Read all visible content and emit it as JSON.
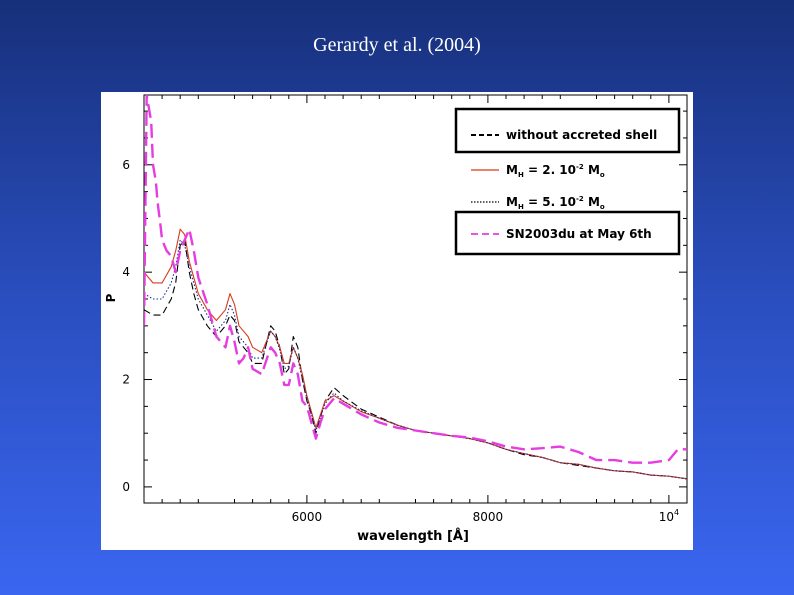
{
  "slide": {
    "title": "Gerardy et al. (2004)"
  },
  "chart_data": {
    "type": "line",
    "xlabel": "wavelength [Å]",
    "ylabel": "P",
    "xlim": [
      4200,
      10200
    ],
    "ylim": [
      -0.3,
      7.3
    ],
    "x_ticks": [
      {
        "value": 6000,
        "label": "6000"
      },
      {
        "value": 8000,
        "label": "8000"
      },
      {
        "value": 10000,
        "label": "10",
        "sup": "4"
      }
    ],
    "y_ticks": [
      {
        "value": 0,
        "label": "0"
      },
      {
        "value": 2,
        "label": "2"
      },
      {
        "value": 4,
        "label": "4"
      },
      {
        "value": 6,
        "label": "6"
      }
    ],
    "legend_position": "top-right",
    "series": [
      {
        "name": "without accreted shell",
        "legend_text": "without  accreted  shell",
        "color": "#000000",
        "dash": "7,4",
        "width": 1.1,
        "x": [
          4200,
          4300,
          4400,
          4500,
          4550,
          4600,
          4650,
          4700,
          4750,
          4800,
          4900,
          5000,
          5100,
          5150,
          5200,
          5250,
          5300,
          5350,
          5400,
          5500,
          5600,
          5650,
          5700,
          5750,
          5800,
          5850,
          5900,
          5950,
          6000,
          6050,
          6100,
          6150,
          6200,
          6300,
          6400,
          6600,
          6800,
          7000,
          7200,
          7400,
          7600,
          7800,
          8000,
          8200,
          8400,
          8600,
          8800,
          9000,
          9200,
          9400,
          9600,
          9800,
          10000,
          10200
        ],
        "y": [
          3.3,
          3.2,
          3.2,
          3.5,
          3.8,
          4.5,
          4.6,
          4.0,
          3.6,
          3.3,
          3.0,
          2.8,
          3.0,
          3.2,
          3.1,
          2.7,
          2.6,
          2.5,
          2.3,
          2.3,
          3.0,
          2.9,
          2.6,
          2.1,
          2.2,
          2.8,
          2.6,
          2.0,
          1.6,
          1.35,
          1.0,
          1.3,
          1.6,
          1.85,
          1.7,
          1.45,
          1.3,
          1.15,
          1.05,
          1.0,
          0.95,
          0.9,
          0.82,
          0.7,
          0.6,
          0.55,
          0.45,
          0.4,
          0.35,
          0.3,
          0.28,
          0.22,
          0.2,
          0.15
        ]
      },
      {
        "name": "M_H = 2. 10^-2 M_o",
        "legend_text": "M",
        "legend_sub": "H",
        "legend_mid": " =  2.  10",
        "legend_sup": "-2",
        "legend_end": " M",
        "legend_end_sub": "o",
        "color": "#d83a1a",
        "dash": "",
        "width": 1.1,
        "x": [
          4200,
          4300,
          4400,
          4500,
          4550,
          4600,
          4650,
          4700,
          4750,
          4800,
          4900,
          5000,
          5100,
          5150,
          5200,
          5250,
          5300,
          5350,
          5400,
          5500,
          5600,
          5650,
          5700,
          5750,
          5800,
          5850,
          5900,
          5950,
          6000,
          6050,
          6100,
          6150,
          6200,
          6300,
          6400,
          6600,
          6800,
          7000,
          7200,
          7400,
          7600,
          7800,
          8000,
          8200,
          8400,
          8600,
          8800,
          9000,
          9200,
          9400,
          9600,
          9800,
          10000,
          10200
        ],
        "y": [
          4.0,
          3.8,
          3.8,
          4.1,
          4.4,
          4.8,
          4.7,
          4.2,
          3.9,
          3.6,
          3.3,
          3.1,
          3.3,
          3.6,
          3.4,
          3.0,
          2.9,
          2.8,
          2.6,
          2.5,
          2.9,
          2.8,
          2.6,
          2.3,
          2.3,
          2.6,
          2.4,
          2.1,
          1.7,
          1.4,
          1.1,
          1.35,
          1.6,
          1.7,
          1.6,
          1.4,
          1.28,
          1.15,
          1.05,
          1.0,
          0.95,
          0.9,
          0.82,
          0.7,
          0.62,
          0.55,
          0.45,
          0.42,
          0.35,
          0.3,
          0.28,
          0.22,
          0.2,
          0.15
        ]
      },
      {
        "name": "M_H = 5. 10^-2 M_o",
        "legend_text": "M",
        "legend_sub": "H",
        "legend_mid": " =  5.  10",
        "legend_sup": "-2",
        "legend_end": " M",
        "legend_end_sub": "o",
        "color": "#1c2a8a",
        "dash": "1.5,2",
        "width": 1.1,
        "x": [
          4200,
          4300,
          4400,
          4500,
          4550,
          4600,
          4650,
          4700,
          4750,
          4800,
          4900,
          5000,
          5100,
          5150,
          5200,
          5250,
          5300,
          5350,
          5400,
          5500,
          5600,
          5650,
          5700,
          5750,
          5800,
          5850,
          5900,
          5950,
          6000,
          6050,
          6100,
          6150,
          6200,
          6300,
          6400,
          6600,
          6800,
          7000,
          7200,
          7400,
          7600,
          7800,
          8000,
          8200,
          8400,
          8600,
          8800,
          9000,
          9200,
          9400,
          9600,
          9800,
          10000,
          10200
        ],
        "y": [
          3.6,
          3.5,
          3.5,
          3.8,
          4.1,
          4.6,
          4.5,
          4.1,
          3.8,
          3.5,
          3.2,
          2.9,
          3.1,
          3.4,
          3.2,
          2.8,
          2.7,
          2.6,
          2.4,
          2.4,
          2.9,
          2.8,
          2.55,
          2.2,
          2.25,
          2.6,
          2.4,
          2.0,
          1.65,
          1.35,
          1.05,
          1.3,
          1.55,
          1.75,
          1.6,
          1.42,
          1.28,
          1.15,
          1.05,
          1.0,
          0.95,
          0.9,
          0.82,
          0.7,
          0.62,
          0.55,
          0.45,
          0.42,
          0.35,
          0.3,
          0.28,
          0.22,
          0.2,
          0.15
        ]
      },
      {
        "name": "SN2003du at May 6th",
        "legend_text": "SN2003du  at  May  6th",
        "color": "#e53de0",
        "dash": "14,6",
        "width": 2.4,
        "x": [
          4200,
          4230,
          4250,
          4280,
          4300,
          4330,
          4350,
          4380,
          4400,
          4450,
          4500,
          4550,
          4600,
          4650,
          4700,
          4750,
          4800,
          4900,
          5000,
          5100,
          5150,
          5200,
          5250,
          5300,
          5350,
          5400,
          5500,
          5600,
          5650,
          5700,
          5750,
          5800,
          5850,
          5900,
          5950,
          6000,
          6050,
          6100,
          6150,
          6200,
          6300,
          6400,
          6600,
          6800,
          7000,
          7200,
          7400,
          7600,
          7800,
          8000,
          8200,
          8400,
          8600,
          8800,
          9000,
          9200,
          9400,
          9600,
          9800,
          10000,
          10100,
          10200
        ],
        "y": [
          3.0,
          7.3,
          7.1,
          6.8,
          6.0,
          5.7,
          5.3,
          4.9,
          4.6,
          4.4,
          4.3,
          4.0,
          4.4,
          4.6,
          4.8,
          4.4,
          3.9,
          3.4,
          2.8,
          2.6,
          3.0,
          2.7,
          2.3,
          2.4,
          2.6,
          2.2,
          2.1,
          2.6,
          2.5,
          2.3,
          1.9,
          1.9,
          2.3,
          2.1,
          1.6,
          1.5,
          1.2,
          0.9,
          1.2,
          1.45,
          1.65,
          1.55,
          1.35,
          1.2,
          1.1,
          1.05,
          1.0,
          0.95,
          0.92,
          0.85,
          0.75,
          0.7,
          0.72,
          0.75,
          0.65,
          0.5,
          0.5,
          0.45,
          0.45,
          0.5,
          0.7,
          0.7
        ]
      }
    ]
  }
}
